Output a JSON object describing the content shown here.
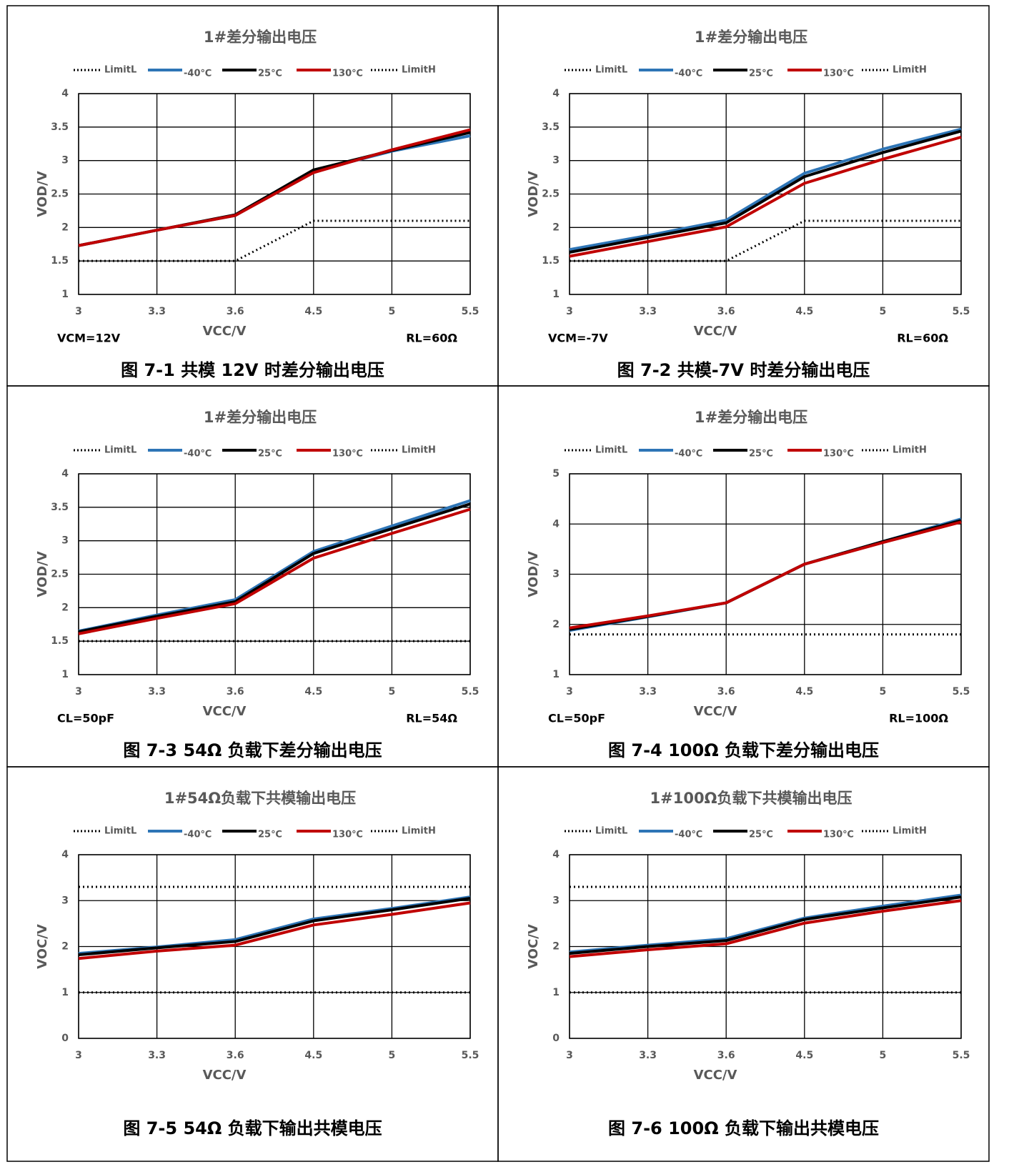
{
  "chart_data": [
    {
      "type": "line",
      "title": "1#差分输出电压",
      "caption": "图 7-1 共模 12V 时差分输出电压",
      "xlabel": "VCC/V",
      "ylabel": "VOD/V",
      "annotations": [
        "VCM=12V",
        "RL=60Ω"
      ],
      "categories": [
        "3",
        "3.3",
        "3.6",
        "4.5",
        "5",
        "5.5"
      ],
      "ylim": [
        1,
        4
      ],
      "yticks": [
        1,
        1.5,
        2,
        2.5,
        3,
        3.5,
        4
      ],
      "grid": true,
      "series": [
        {
          "name": "LimitL",
          "color": "#000000",
          "style": "dotted",
          "values": [
            1.5,
            1.5,
            1.5,
            2.1,
            2.1,
            2.1
          ]
        },
        {
          "name": "-40℃",
          "color": "#2e75b6",
          "style": "solid",
          "values": [
            1.73,
            1.96,
            2.18,
            2.84,
            3.14,
            3.37
          ]
        },
        {
          "name": "25℃",
          "color": "#000000",
          "style": "solid",
          "values": [
            1.73,
            1.96,
            2.19,
            2.86,
            3.15,
            3.42
          ]
        },
        {
          "name": "130℃",
          "color": "#c00000",
          "style": "solid",
          "values": [
            1.73,
            1.96,
            2.18,
            2.82,
            3.16,
            3.46
          ]
        },
        {
          "name": "LimitH",
          "color": "#000000",
          "style": "dotted",
          "values": [
            null,
            null,
            null,
            null,
            null,
            null
          ]
        }
      ]
    },
    {
      "type": "line",
      "title": "1#差分输出电压",
      "caption": "图 7-2 共模-7V 时差分输出电压",
      "xlabel": "VCC/V",
      "ylabel": "VOD/V",
      "annotations": [
        "VCM=-7V",
        "RL=60Ω"
      ],
      "categories": [
        "3",
        "3.3",
        "3.6",
        "4.5",
        "5",
        "5.5"
      ],
      "ylim": [
        1,
        4
      ],
      "yticks": [
        1,
        1.5,
        2,
        2.5,
        3,
        3.5,
        4
      ],
      "grid": true,
      "series": [
        {
          "name": "LimitL",
          "color": "#000000",
          "style": "dotted",
          "values": [
            1.5,
            1.5,
            1.5,
            2.1,
            2.1,
            2.1
          ]
        },
        {
          "name": "-40℃",
          "color": "#2e75b6",
          "style": "solid",
          "values": [
            1.67,
            1.88,
            2.11,
            2.81,
            3.17,
            3.47
          ]
        },
        {
          "name": "25℃",
          "color": "#000000",
          "style": "solid",
          "values": [
            1.63,
            1.85,
            2.07,
            2.76,
            3.12,
            3.44
          ]
        },
        {
          "name": "130℃",
          "color": "#c00000",
          "style": "solid",
          "values": [
            1.57,
            1.79,
            2.01,
            2.66,
            3.02,
            3.35
          ]
        },
        {
          "name": "LimitH",
          "color": "#000000",
          "style": "dotted",
          "values": [
            null,
            null,
            null,
            null,
            null,
            null
          ]
        }
      ]
    },
    {
      "type": "line",
      "title": "1#差分输出电压",
      "caption": "图 7-3 54Ω 负载下差分输出电压",
      "xlabel": "VCC/V",
      "ylabel": "VOD/V",
      "annotations": [
        "CL=50pF",
        "RL=54Ω"
      ],
      "categories": [
        "3",
        "3.3",
        "3.6",
        "4.5",
        "5",
        "5.5"
      ],
      "ylim": [
        1,
        4
      ],
      "yticks": [
        1,
        1.5,
        2,
        2.5,
        3,
        3.5,
        4
      ],
      "grid": true,
      "series": [
        {
          "name": "LimitL",
          "color": "#000000",
          "style": "dotted",
          "values": [
            1.5,
            1.5,
            1.5,
            1.5,
            1.5,
            1.5
          ]
        },
        {
          "name": "-40℃",
          "color": "#2e75b6",
          "style": "solid",
          "values": [
            1.65,
            1.89,
            2.12,
            2.84,
            3.22,
            3.6
          ]
        },
        {
          "name": "25℃",
          "color": "#000000",
          "style": "solid",
          "values": [
            1.64,
            1.87,
            2.09,
            2.81,
            3.18,
            3.55
          ]
        },
        {
          "name": "130℃",
          "color": "#c00000",
          "style": "solid",
          "values": [
            1.61,
            1.84,
            2.06,
            2.74,
            3.11,
            3.47
          ]
        },
        {
          "name": "LimitH",
          "color": "#000000",
          "style": "dotted",
          "values": [
            null,
            null,
            null,
            null,
            null,
            null
          ]
        }
      ]
    },
    {
      "type": "line",
      "title": "1#差分输出电压",
      "caption": "图 7-4 100Ω 负载下差分输出电压",
      "xlabel": "VCC/V",
      "ylabel": "VOD/V",
      "annotations": [
        "CL=50pF",
        "RL=100Ω"
      ],
      "categories": [
        "3",
        "3.3",
        "3.6",
        "4.5",
        "5",
        "5.5"
      ],
      "ylim": [
        1,
        5
      ],
      "yticks": [
        1,
        2,
        3,
        4,
        5
      ],
      "grid": true,
      "series": [
        {
          "name": "LimitL",
          "color": "#000000",
          "style": "dotted",
          "values": [
            1.8,
            1.8,
            1.8,
            1.8,
            1.8,
            1.8
          ]
        },
        {
          "name": "-40℃",
          "color": "#2e75b6",
          "style": "solid",
          "values": [
            1.88,
            2.15,
            2.43,
            3.2,
            3.65,
            4.1
          ]
        },
        {
          "name": "25℃",
          "color": "#000000",
          "style": "solid",
          "values": [
            1.9,
            2.16,
            2.43,
            3.2,
            3.65,
            4.07
          ]
        },
        {
          "name": "130℃",
          "color": "#c00000",
          "style": "solid",
          "values": [
            1.93,
            2.17,
            2.43,
            3.2,
            3.63,
            4.04
          ]
        },
        {
          "name": "LimitH",
          "color": "#000000",
          "style": "dotted",
          "values": [
            null,
            null,
            null,
            null,
            null,
            null
          ]
        }
      ]
    },
    {
      "type": "line",
      "title": "1#54Ω负载下共模输出电压",
      "caption": "图 7-5 54Ω 负载下输出共模电压",
      "xlabel": "VCC/V",
      "ylabel": "VOC/V",
      "annotations": [],
      "categories": [
        "3",
        "3.3",
        "3.6",
        "4.5",
        "5",
        "5.5"
      ],
      "ylim": [
        0,
        4
      ],
      "yticks": [
        0,
        1,
        2,
        3,
        4
      ],
      "grid": true,
      "series": [
        {
          "name": "LimitL",
          "color": "#000000",
          "style": "dotted",
          "values": [
            1,
            1,
            1,
            1,
            1,
            1
          ]
        },
        {
          "name": "-40℃",
          "color": "#2e75b6",
          "style": "solid",
          "values": [
            1.85,
            1.99,
            2.15,
            2.6,
            2.83,
            3.08
          ]
        },
        {
          "name": "25℃",
          "color": "#000000",
          "style": "solid",
          "values": [
            1.82,
            1.97,
            2.11,
            2.56,
            2.8,
            3.05
          ]
        },
        {
          "name": "130℃",
          "color": "#c00000",
          "style": "solid",
          "values": [
            1.74,
            1.9,
            2.03,
            2.47,
            2.7,
            2.95
          ]
        },
        {
          "name": "LimitH",
          "color": "#000000",
          "style": "dotted",
          "values": [
            3.3,
            3.3,
            3.3,
            3.3,
            3.3,
            3.3
          ]
        }
      ]
    },
    {
      "type": "line",
      "title": "1#100Ω负载下共模输出电压",
      "caption": "图 7-6 100Ω 负载下输出共模电压",
      "xlabel": "VCC/V",
      "ylabel": "VOC/V",
      "annotations": [],
      "categories": [
        "3",
        "3.3",
        "3.6",
        "4.5",
        "5",
        "5.5"
      ],
      "ylim": [
        0,
        4
      ],
      "yticks": [
        0,
        1,
        2,
        3,
        4
      ],
      "grid": true,
      "series": [
        {
          "name": "LimitL",
          "color": "#000000",
          "style": "dotted",
          "values": [
            1,
            1,
            1,
            1,
            1,
            1
          ]
        },
        {
          "name": "-40℃",
          "color": "#2e75b6",
          "style": "solid",
          "values": [
            1.88,
            2.03,
            2.17,
            2.62,
            2.88,
            3.12
          ]
        },
        {
          "name": "25℃",
          "color": "#000000",
          "style": "solid",
          "values": [
            1.85,
            2.0,
            2.13,
            2.59,
            2.84,
            3.08
          ]
        },
        {
          "name": "130℃",
          "color": "#c00000",
          "style": "solid",
          "values": [
            1.78,
            1.93,
            2.06,
            2.51,
            2.77,
            3.0
          ]
        },
        {
          "name": "LimitH",
          "color": "#000000",
          "style": "dotted",
          "values": [
            3.3,
            3.3,
            3.3,
            3.3,
            3.3,
            3.3
          ]
        }
      ]
    }
  ]
}
